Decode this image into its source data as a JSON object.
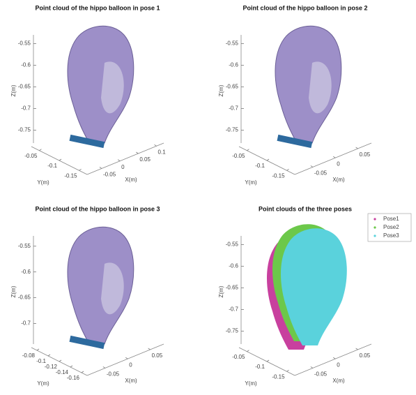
{
  "panels": [
    {
      "title": "Point cloud of the hippo balloon in pose 1",
      "zlabel": "Z(m)",
      "ylabel": "Y(m)",
      "xlabel": "X(m)",
      "zlim": [
        -0.78,
        -0.53
      ],
      "zticks": [
        -0.55,
        -0.6,
        -0.65,
        -0.7,
        -0.75
      ],
      "ylim": [
        -0.17,
        -0.03
      ],
      "yticks": [
        -0.05,
        -0.1,
        -0.15
      ],
      "xlim": [
        -0.09,
        0.12
      ],
      "xticks": [
        -0.05,
        0,
        0.05,
        0.1
      ]
    },
    {
      "title": "Point cloud of the hippo balloon in pose 2",
      "zlabel": "Z(m)",
      "ylabel": "Y(m)",
      "xlabel": "X(m)",
      "zlim": [
        -0.78,
        -0.53
      ],
      "zticks": [
        -0.55,
        -0.6,
        -0.65,
        -0.7,
        -0.75
      ],
      "ylim": [
        -0.17,
        -0.03
      ],
      "yticks": [
        -0.05,
        -0.1,
        -0.15
      ],
      "xlim": [
        -0.09,
        0.08
      ],
      "xticks": [
        -0.05,
        0,
        0.05
      ]
    },
    {
      "title": "Point cloud of the hippo balloon in pose 3",
      "zlabel": "Z(m)",
      "ylabel": "Y(m)",
      "xlabel": "X(m)",
      "zlim": [
        -0.74,
        -0.53
      ],
      "zticks": [
        -0.55,
        -0.6,
        -0.65,
        -0.7
      ],
      "ylim": [
        -0.17,
        -0.07
      ],
      "yticks": [
        -0.08,
        -0.1,
        -0.12,
        -0.14,
        -0.16
      ],
      "xlim": [
        -0.09,
        0.08
      ],
      "xticks": [
        -0.05,
        0,
        0.05
      ]
    },
    {
      "title": "Point clouds of the three poses",
      "zlabel": "Z(m)",
      "ylabel": "Y(m)",
      "xlabel": "X(m)",
      "zlim": [
        -0.78,
        -0.53
      ],
      "zticks": [
        -0.55,
        -0.6,
        -0.65,
        -0.7,
        -0.75
      ],
      "ylim": [
        -0.17,
        -0.03
      ],
      "yticks": [
        -0.05,
        -0.1,
        -0.15
      ],
      "xlim": [
        -0.09,
        0.08
      ],
      "xticks": [
        -0.05,
        0,
        0.05
      ],
      "legend": [
        {
          "name": "Pose1",
          "color": "#c8409e"
        },
        {
          "name": "Pose2",
          "color": "#6cc84a"
        },
        {
          "name": "Pose3",
          "color": "#5ad2dc"
        }
      ]
    }
  ]
}
